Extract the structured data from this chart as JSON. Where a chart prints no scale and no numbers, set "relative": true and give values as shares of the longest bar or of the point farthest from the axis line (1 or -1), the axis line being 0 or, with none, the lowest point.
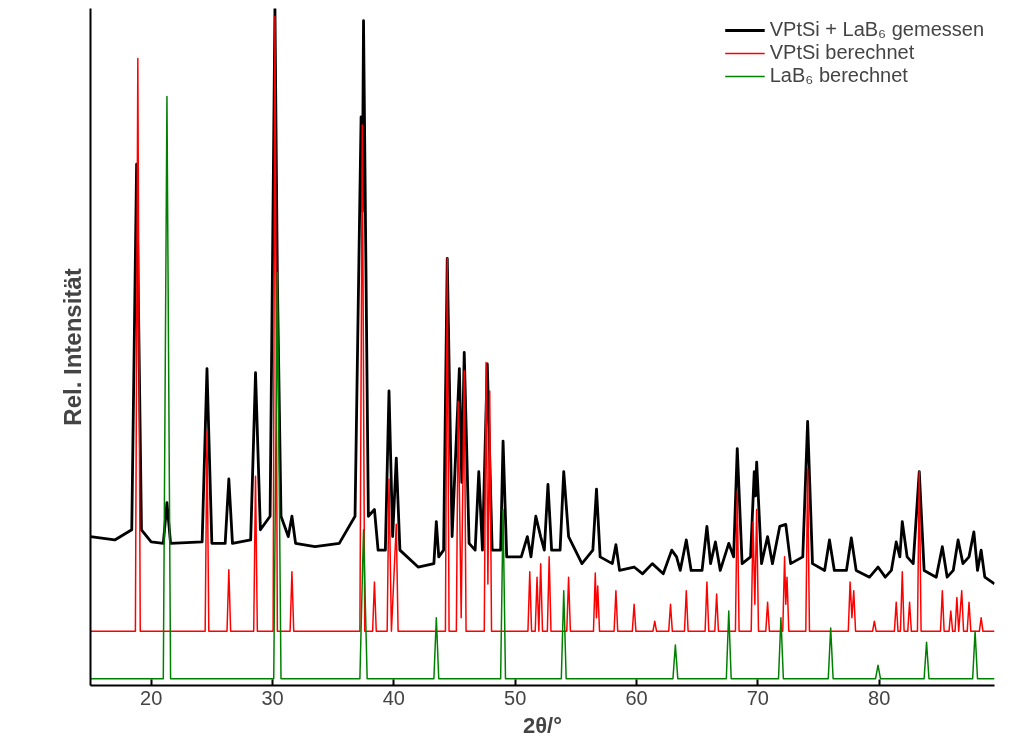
{
  "chart_data": {
    "type": "line",
    "relative": true,
    "xlabel": "2θ/°",
    "ylabel": "Rel. Intensität",
    "xlim": [
      15,
      89.5
    ],
    "xticks": [
      20,
      30,
      40,
      50,
      60,
      70,
      80
    ],
    "tick_labels": "x",
    "legend": "top right",
    "grid": false,
    "series": [
      {
        "name": "VPtSi + LaB₆ gemessen",
        "color": "#000000",
        "x": [
          15,
          17,
          18.4,
          18.8,
          19.2,
          20,
          21.0,
          21.3,
          21.6,
          24.2,
          24.6,
          25.0,
          26.1,
          26.4,
          26.7,
          28.2,
          28.6,
          29.0,
          29.8,
          30.2,
          30.4,
          30.7,
          31.3,
          31.6,
          31.9,
          33.5,
          35.5,
          36.8,
          37.3,
          37.4,
          37.5,
          37.9,
          38.4,
          38.7,
          39.3,
          39.6,
          39.9,
          40.2,
          40.5,
          42,
          43.3,
          43.5,
          43.7,
          44.1,
          44.4,
          44.8,
          45.4,
          45.6,
          45.8,
          46.2,
          46.7,
          47.0,
          47.3,
          47.7,
          48.1,
          48.8,
          49.0,
          49.3,
          50.5,
          51.0,
          51.3,
          51.7,
          52.1,
          52.4,
          52.7,
          53.0,
          53.7,
          54.0,
          54.4,
          55.5,
          56.4,
          56.7,
          57.0,
          58.0,
          58.3,
          58.6,
          59.8,
          60.5,
          61.3,
          62.2,
          62.9,
          63.3,
          63.6,
          64.1,
          64.5,
          65.4,
          65.8,
          66.1,
          66.5,
          66.9,
          67.6,
          68.0,
          68.3,
          68.7,
          69.4,
          69.7,
          69.8,
          69.9,
          70.3,
          70.8,
          71.2,
          71.8,
          72.3,
          72.7,
          73.7,
          74.1,
          74.5,
          75.5,
          75.9,
          76.3,
          77.3,
          77.7,
          78.1,
          79.2,
          79.9,
          80.5,
          81.0,
          81.4,
          81.7,
          81.9,
          82.3,
          82.8,
          83.3,
          83.7,
          84.7,
          85.2,
          85.6,
          86.1,
          86.5,
          86.9,
          87.4,
          87.8,
          88.1,
          88.4,
          88.7,
          89.5
        ],
        "values": [
          0.22,
          0.215,
          0.23,
          0.77,
          0.23,
          0.212,
          0.21,
          0.27,
          0.21,
          0.212,
          0.468,
          0.21,
          0.21,
          0.305,
          0.21,
          0.215,
          0.462,
          0.23,
          0.25,
          1.0,
          0.6,
          0.25,
          0.22,
          0.25,
          0.21,
          0.205,
          0.21,
          0.25,
          0.84,
          0.7,
          0.982,
          0.25,
          0.26,
          0.2,
          0.2,
          0.435,
          0.22,
          0.336,
          0.2,
          0.175,
          0.18,
          0.242,
          0.19,
          0.2,
          0.631,
          0.22,
          0.468,
          0.3,
          0.492,
          0.21,
          0.2,
          0.316,
          0.2,
          0.475,
          0.2,
          0.2,
          0.361,
          0.19,
          0.19,
          0.22,
          0.19,
          0.25,
          0.22,
          0.2,
          0.297,
          0.2,
          0.2,
          0.316,
          0.22,
          0.18,
          0.2,
          0.29,
          0.19,
          0.18,
          0.208,
          0.17,
          0.175,
          0.165,
          0.18,
          0.165,
          0.2,
          0.19,
          0.17,
          0.215,
          0.17,
          0.17,
          0.235,
          0.18,
          0.212,
          0.17,
          0.21,
          0.19,
          0.35,
          0.18,
          0.19,
          0.316,
          0.28,
          0.33,
          0.18,
          0.22,
          0.18,
          0.235,
          0.238,
          0.18,
          0.19,
          0.39,
          0.18,
          0.17,
          0.215,
          0.17,
          0.17,
          0.218,
          0.17,
          0.16,
          0.175,
          0.16,
          0.17,
          0.212,
          0.19,
          0.242,
          0.19,
          0.18,
          0.316,
          0.17,
          0.16,
          0.205,
          0.16,
          0.17,
          0.215,
          0.18,
          0.19,
          0.227,
          0.17,
          0.2,
          0.16,
          0.15
        ]
      },
      {
        "name": "VPtSi berechnet",
        "color": "#ff0000",
        "x": [
          15,
          18.7,
          18.9,
          19.1,
          24.45,
          24.6,
          24.75,
          26.25,
          26.4,
          26.55,
          28.45,
          28.6,
          28.75,
          30.05,
          30.2,
          30.4,
          31.45,
          31.6,
          31.75,
          37.2,
          37.4,
          37.6,
          38.25,
          38.4,
          38.55,
          39.45,
          39.6,
          39.8,
          40.2,
          40.35,
          44.25,
          44.4,
          44.55,
          45.15,
          45.3,
          45.55,
          45.8,
          45.95,
          47.45,
          47.6,
          47.75,
          47.9,
          48.05,
          51.05,
          51.2,
          51.35,
          51.65,
          51.8,
          51.95,
          52.1,
          52.25,
          52.65,
          52.8,
          52.95,
          54.25,
          54.4,
          54.55,
          56.45,
          56.6,
          56.7,
          56.8,
          56.95,
          58.15,
          58.3,
          58.45,
          59.65,
          59.8,
          59.95,
          61.35,
          61.5,
          61.65,
          62.65,
          62.8,
          62.95,
          63.95,
          64.1,
          64.25,
          65.65,
          65.8,
          65.95,
          66.45,
          66.6,
          66.75,
          68.15,
          68.3,
          68.45,
          69.45,
          69.6,
          69.75,
          69.9,
          70.05,
          70.65,
          70.8,
          70.95,
          72.05,
          72.2,
          72.3,
          72.4,
          72.55,
          73.95,
          74.1,
          74.25,
          77.45,
          77.6,
          77.75,
          77.9,
          78.05,
          79.45,
          79.6,
          79.75,
          81.25,
          81.4,
          81.55,
          81.75,
          81.9,
          82.05,
          82.35,
          82.5,
          82.65,
          83.15,
          83.3,
          83.45,
          85.05,
          85.2,
          85.35,
          85.75,
          85.9,
          86.05,
          86.25,
          86.4,
          86.55,
          86.8,
          86.95,
          87.25,
          87.4,
          87.55,
          88.25,
          88.4,
          88.55,
          89.5
        ],
        "values": [
          0.08,
          0.08,
          0.926,
          0.08,
          0.08,
          0.376,
          0.08,
          0.08,
          0.171,
          0.08,
          0.08,
          0.309,
          0.08,
          0.08,
          0.988,
          0.08,
          0.08,
          0.168,
          0.08,
          0.08,
          0.828,
          0.08,
          0.08,
          0.153,
          0.08,
          0.08,
          0.305,
          0.08,
          0.238,
          0.08,
          0.08,
          0.631,
          0.08,
          0.08,
          0.42,
          0.1,
          0.465,
          0.08,
          0.08,
          0.477,
          0.15,
          0.435,
          0.08,
          0.08,
          0.168,
          0.08,
          0.08,
          0.16,
          0.08,
          0.18,
          0.08,
          0.08,
          0.19,
          0.08,
          0.08,
          0.16,
          0.08,
          0.08,
          0.166,
          0.1,
          0.147,
          0.08,
          0.08,
          0.14,
          0.08,
          0.08,
          0.12,
          0.08,
          0.08,
          0.095,
          0.08,
          0.08,
          0.12,
          0.08,
          0.08,
          0.14,
          0.08,
          0.08,
          0.153,
          0.08,
          0.08,
          0.135,
          0.08,
          0.08,
          0.287,
          0.08,
          0.08,
          0.242,
          0.12,
          0.26,
          0.08,
          0.08,
          0.123,
          0.08,
          0.08,
          0.19,
          0.12,
          0.16,
          0.08,
          0.08,
          0.32,
          0.08,
          0.08,
          0.153,
          0.1,
          0.14,
          0.08,
          0.08,
          0.095,
          0.08,
          0.08,
          0.123,
          0.08,
          0.08,
          0.168,
          0.08,
          0.08,
          0.123,
          0.08,
          0.08,
          0.316,
          0.08,
          0.08,
          0.14,
          0.08,
          0.08,
          0.11,
          0.08,
          0.08,
          0.13,
          0.08,
          0.14,
          0.08,
          0.08,
          0.123,
          0.08,
          0.08,
          0.1,
          0.08,
          0.08
        ]
      },
      {
        "name": "LaB₆ berechnet",
        "color": "#008000",
        "x": [
          15,
          21.0,
          21.3,
          21.6,
          30.1,
          30.4,
          30.7,
          37.2,
          37.5,
          37.8,
          43.3,
          43.5,
          43.7,
          48.8,
          49.0,
          49.2,
          53.8,
          54.0,
          54.2,
          63.0,
          63.2,
          63.4,
          67.4,
          67.6,
          67.8,
          71.7,
          71.9,
          72.1,
          75.8,
          76.0,
          76.2,
          79.7,
          79.9,
          80.1,
          83.7,
          83.9,
          84.1,
          87.7,
          87.9,
          88.1,
          89.5
        ],
        "values": [
          0.01,
          0.01,
          0.87,
          0.01,
          0.01,
          0.61,
          0.01,
          0.01,
          0.23,
          0.01,
          0.01,
          0.1,
          0.01,
          0.01,
          0.26,
          0.01,
          0.01,
          0.14,
          0.01,
          0.01,
          0.06,
          0.01,
          0.01,
          0.11,
          0.01,
          0.01,
          0.1,
          0.01,
          0.01,
          0.085,
          0.01,
          0.01,
          0.03,
          0.01,
          0.01,
          0.064,
          0.01,
          0.01,
          0.08,
          0.01,
          0.01
        ]
      }
    ]
  }
}
